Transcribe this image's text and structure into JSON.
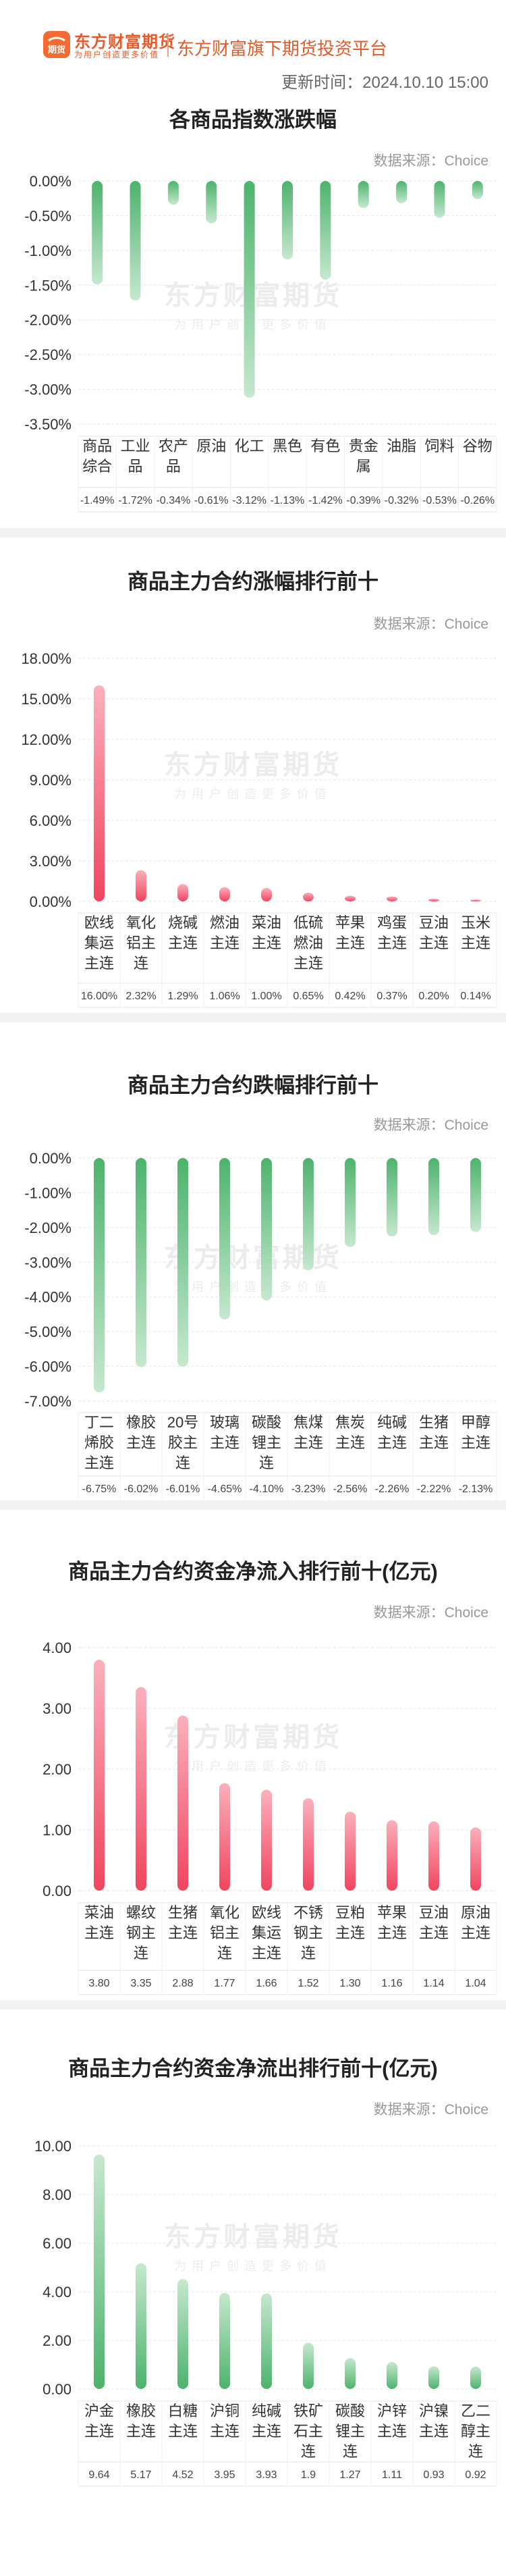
{
  "header": {
    "brand": "东方财富期货",
    "brand_sub": "为用户创造更多价值",
    "tagline": "东方财富旗下期货投资平台",
    "update_time": "更新时间：2024.10.10 15:00",
    "logo_mark": "期货"
  },
  "watermark": {
    "main": "东方财富期货",
    "sub": "为用户创造更多价值"
  },
  "colors": {
    "up": "#f0455f",
    "up_light": "#fbb0bc",
    "down": "#4db36c",
    "down_light": "#c6e8cf",
    "brand": "#f36b32"
  },
  "chart_data": [
    {
      "id": "index-change",
      "type": "bar",
      "title": "各商品指数涨跌幅",
      "source": "数据来源：Choice",
      "categories": [
        "商品综合",
        "工业品",
        "农产品",
        "原油",
        "化工",
        "黑色",
        "有色",
        "贵金属",
        "油脂",
        "饲料",
        "谷物"
      ],
      "category_lines": [
        [
          "商品",
          "综合"
        ],
        [
          "工业",
          "品"
        ],
        [
          "农产",
          "品"
        ],
        [
          "原油"
        ],
        [
          "化工"
        ],
        [
          "黑色"
        ],
        [
          "有色"
        ],
        [
          "贵金",
          "属"
        ],
        [
          "油脂"
        ],
        [
          "饲料"
        ],
        [
          "谷物"
        ]
      ],
      "values": [
        -1.49,
        -1.72,
        -0.34,
        -0.61,
        -3.12,
        -1.13,
        -1.42,
        -0.39,
        -0.32,
        -0.53,
        -0.26
      ],
      "value_labels": [
        "-1.49%",
        "-1.72%",
        "-0.34%",
        "-0.61%",
        "-3.12%",
        "-1.13%",
        "-1.42%",
        "-0.39%",
        "-0.32%",
        "-0.53%",
        "-0.26%"
      ],
      "yticks": [
        0,
        -0.5,
        -1,
        -1.5,
        -2,
        -2.5,
        -3,
        -3.5
      ],
      "ytick_labels": [
        "0.00%",
        "-0.50%",
        "-1.00%",
        "-1.50%",
        "-2.00%",
        "-2.50%",
        "-3.00%",
        "-3.50%"
      ],
      "ylim": [
        -3.5,
        0
      ],
      "direction": "down"
    },
    {
      "id": "top-gainers",
      "type": "bar",
      "title": "商品主力合约涨幅排行前十",
      "source": "数据来源：Choice",
      "categories": [
        "欧线集运主连",
        "氧化铝主连",
        "烧碱主连",
        "燃油主连",
        "菜油主连",
        "低硫燃油主连",
        "苹果主连",
        "鸡蛋主连",
        "豆油主连",
        "玉米主连"
      ],
      "category_lines": [
        [
          "欧线",
          "集运",
          "主连"
        ],
        [
          "氧化",
          "铝主",
          "连"
        ],
        [
          "烧碱",
          "主连"
        ],
        [
          "燃油",
          "主连"
        ],
        [
          "菜油",
          "主连"
        ],
        [
          "低硫",
          "燃油",
          "主连"
        ],
        [
          "苹果",
          "主连"
        ],
        [
          "鸡蛋",
          "主连"
        ],
        [
          "豆油",
          "主连"
        ],
        [
          "玉米",
          "主连"
        ]
      ],
      "values": [
        16.0,
        2.32,
        1.29,
        1.06,
        1.0,
        0.65,
        0.42,
        0.37,
        0.2,
        0.14
      ],
      "value_labels": [
        "16.00%",
        "2.32%",
        "1.29%",
        "1.06%",
        "1.00%",
        "0.65%",
        "0.42%",
        "0.37%",
        "0.20%",
        "0.14%"
      ],
      "yticks": [
        0,
        3,
        6,
        9,
        12,
        15,
        18
      ],
      "ytick_labels": [
        "0.00%",
        "3.00%",
        "6.00%",
        "9.00%",
        "12.00%",
        "15.00%",
        "18.00%"
      ],
      "ylim": [
        0,
        18
      ],
      "direction": "up"
    },
    {
      "id": "top-losers",
      "type": "bar",
      "title": "商品主力合约跌幅排行前十",
      "source": "数据来源：Choice",
      "categories": [
        "丁二烯胶主连",
        "橡胶主连",
        "20号胶主连",
        "玻璃主连",
        "碳酸锂主连",
        "焦煤主连",
        "焦炭主连",
        "纯碱主连",
        "生猪主连",
        "甲醇主连"
      ],
      "category_lines": [
        [
          "丁二",
          "烯胶",
          "主连"
        ],
        [
          "橡胶",
          "主连"
        ],
        [
          "20号",
          "胶主",
          "连"
        ],
        [
          "玻璃",
          "主连"
        ],
        [
          "碳酸",
          "锂主",
          "连"
        ],
        [
          "焦煤",
          "主连"
        ],
        [
          "焦炭",
          "主连"
        ],
        [
          "纯碱",
          "主连"
        ],
        [
          "生猪",
          "主连"
        ],
        [
          "甲醇",
          "主连"
        ]
      ],
      "values": [
        -6.75,
        -6.02,
        -6.01,
        -4.65,
        -4.1,
        -3.23,
        -2.56,
        -2.26,
        -2.22,
        -2.13
      ],
      "value_labels": [
        "-6.75%",
        "-6.02%",
        "-6.01%",
        "-4.65%",
        "-4.10%",
        "-3.23%",
        "-2.56%",
        "-2.26%",
        "-2.22%",
        "-2.13%"
      ],
      "yticks": [
        0,
        -1,
        -2,
        -3,
        -4,
        -5,
        -6,
        -7
      ],
      "ytick_labels": [
        "0.00%",
        "-1.00%",
        "-2.00%",
        "-3.00%",
        "-4.00%",
        "-5.00%",
        "-6.00%",
        "-7.00%"
      ],
      "ylim": [
        -7,
        0
      ],
      "direction": "down"
    },
    {
      "id": "net-inflow",
      "type": "bar",
      "title": "商品主力合约资金净流入排行前十(亿元)",
      "source": "数据来源：Choice",
      "categories": [
        "菜油主连",
        "螺纹钢主连",
        "生猪主连",
        "氧化铝主连",
        "欧线集运主连",
        "不锈钢主连",
        "豆粕主连",
        "苹果主连",
        "豆油主连",
        "原油主连"
      ],
      "category_lines": [
        [
          "菜油",
          "主连"
        ],
        [
          "螺纹",
          "钢主",
          "连"
        ],
        [
          "生猪",
          "主连"
        ],
        [
          "氧化",
          "铝主",
          "连"
        ],
        [
          "欧线",
          "集运",
          "主连"
        ],
        [
          "不锈",
          "钢主",
          "连"
        ],
        [
          "豆粕",
          "主连"
        ],
        [
          "苹果",
          "主连"
        ],
        [
          "豆油",
          "主连"
        ],
        [
          "原油",
          "主连"
        ]
      ],
      "values": [
        3.8,
        3.35,
        2.88,
        1.77,
        1.66,
        1.52,
        1.3,
        1.16,
        1.14,
        1.04
      ],
      "value_labels": [
        "3.80",
        "3.35",
        "2.88",
        "1.77",
        "1.66",
        "1.52",
        "1.30",
        "1.16",
        "1.14",
        "1.04"
      ],
      "yticks": [
        0,
        1,
        2,
        3,
        4
      ],
      "ytick_labels": [
        "0.00",
        "1.00",
        "2.00",
        "3.00",
        "4.00"
      ],
      "ylim": [
        0,
        4
      ],
      "direction": "up"
    },
    {
      "id": "net-outflow",
      "type": "bar",
      "title": "商品主力合约资金净流出排行前十(亿元)",
      "source": "数据来源：Choice",
      "categories": [
        "沪金主连",
        "橡胶主连",
        "白糖主连",
        "沪铜主连",
        "纯碱主连",
        "铁矿石主连",
        "碳酸锂主连",
        "沪锌主连",
        "沪镍主连",
        "乙二醇主连"
      ],
      "category_lines": [
        [
          "沪金",
          "主连"
        ],
        [
          "橡胶",
          "主连"
        ],
        [
          "白糖",
          "主连"
        ],
        [
          "沪铜",
          "主连"
        ],
        [
          "纯碱",
          "主连"
        ],
        [
          "铁矿",
          "石主",
          "连"
        ],
        [
          "碳酸",
          "锂主",
          "连"
        ],
        [
          "沪锌",
          "主连"
        ],
        [
          "沪镍",
          "主连"
        ],
        [
          "乙二",
          "醇主",
          "连"
        ]
      ],
      "values": [
        9.64,
        5.17,
        4.52,
        3.95,
        3.93,
        1.9,
        1.27,
        1.11,
        0.93,
        0.92
      ],
      "value_labels": [
        "9.64",
        "5.17",
        "4.52",
        "3.95",
        "3.93",
        "1.9",
        "1.27",
        "1.11",
        "0.93",
        "0.92"
      ],
      "yticks": [
        0,
        2,
        4,
        6,
        8,
        10
      ],
      "ytick_labels": [
        "0.00",
        "2.00",
        "4.00",
        "6.00",
        "8.00",
        "10.00"
      ],
      "ylim": [
        0,
        10
      ],
      "direction": "up-green"
    }
  ]
}
